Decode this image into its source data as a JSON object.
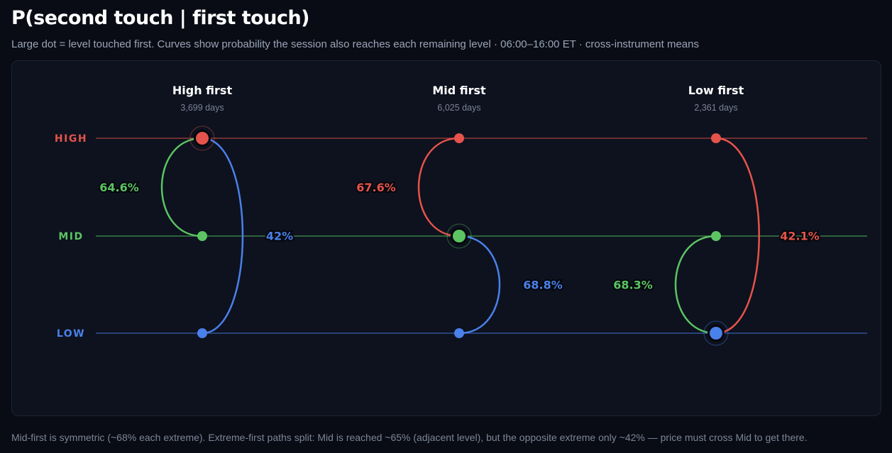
{
  "title": "P(second touch | first touch)",
  "subtitle": "Large dot = level touched first. Curves show probability the session also reaches each remaining level · 06:00–16:00 ET · cross-instrument means",
  "footer": "Mid-first is symmetric (~68% each extreme). Extreme-first paths split: Mid is reached ~65% (adjacent level), but the opposite extreme only ~42% — price must cross Mid to get there.",
  "colors": {
    "high": "#e5534b",
    "mid": "#5cc463",
    "low": "#4a80ea"
  },
  "levels": [
    {
      "key": "high",
      "label": "HIGH"
    },
    {
      "key": "mid",
      "label": "MID"
    },
    {
      "key": "low",
      "label": "LOW"
    }
  ],
  "panels": [
    {
      "title": "High first",
      "days": "3,699 days",
      "first": "high",
      "paths": [
        {
          "to": "mid",
          "prob": "64.6%"
        },
        {
          "to": "low",
          "prob": "42%"
        }
      ]
    },
    {
      "title": "Mid first",
      "days": "6,025 days",
      "first": "mid",
      "paths": [
        {
          "to": "high",
          "prob": "67.6%"
        },
        {
          "to": "low",
          "prob": "68.8%"
        }
      ]
    },
    {
      "title": "Low first",
      "days": "2,361 days",
      "first": "low",
      "paths": [
        {
          "to": "mid",
          "prob": "68.3%"
        },
        {
          "to": "high",
          "prob": "42.1%"
        }
      ]
    }
  ]
}
